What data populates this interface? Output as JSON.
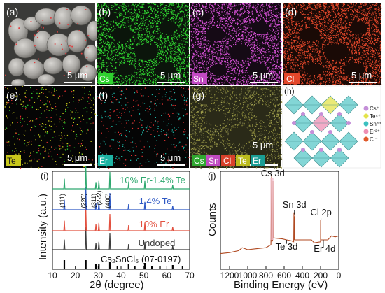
{
  "panels": {
    "a": {
      "label": "(a)",
      "scale": "5 μm"
    },
    "b": {
      "label": "(b)",
      "scale": "5 μm",
      "element": "Cs",
      "color": "#2fd12f"
    },
    "c": {
      "label": "(c)",
      "scale": "5 μm",
      "element": "Sn",
      "color": "#d24fd2"
    },
    "d": {
      "label": "(d)",
      "scale": "5 μm",
      "element": "Cl",
      "color": "#e2472a"
    },
    "e": {
      "label": "(e)",
      "scale": "5 μm",
      "element": "Te",
      "color": "#c8c81c"
    },
    "f": {
      "label": "(f)",
      "scale": "5 μm",
      "element": "Er",
      "color": "#1fb4a4"
    },
    "g": {
      "label": "(g)",
      "scale": "5 μm",
      "tags": [
        {
          "text": "Cs",
          "color": "#2fa82f"
        },
        {
          "text": "Sn",
          "color": "#c04ac0"
        },
        {
          "text": "Cl",
          "color": "#d8412a"
        },
        {
          "text": "Te",
          "color": "#bcbc1c"
        },
        {
          "text": "Er",
          "color": "#1a9e94"
        }
      ]
    },
    "h": {
      "label": "(h)",
      "legend": [
        {
          "text": "Cs⁺",
          "color": "#c48fd8"
        },
        {
          "text": "Te⁴⁺",
          "color": "#e3e34a"
        },
        {
          "text": "Sn⁴⁺",
          "color": "#3cc0c0"
        },
        {
          "text": "Er³⁺",
          "color": "#ef8fb4"
        },
        {
          "text": "Cl⁻",
          "color": "#e05a2a"
        }
      ]
    },
    "i": {
      "label": "(i)"
    },
    "j": {
      "label": "(j)"
    }
  },
  "chart_data": [
    {
      "type": "line",
      "panel": "(i)",
      "xlabel": "2θ (degree)",
      "ylabel": "Intensity (a.u.)",
      "xlim": [
        10,
        70
      ],
      "x_ticks": [
        10,
        20,
        30,
        40,
        50,
        60,
        70
      ],
      "reflections": [
        "(111)",
        "(220)",
        "(311)",
        "(222)",
        "(400)"
      ],
      "reference_label": "Cs₂SnCl₆ (07-0197)",
      "reference_peaks": [
        15.2,
        24.6,
        29.0,
        30.3,
        35.1,
        38.4,
        43.3,
        46.0,
        50.4,
        53.5,
        57.0,
        62.6,
        66.9
      ],
      "series": [
        {
          "name": "Undoped",
          "color": "#3c3c3c",
          "peaks": [
            [
              15.2,
              0.45
            ],
            [
              24.6,
              1.0
            ],
            [
              29.0,
              0.3
            ],
            [
              30.3,
              0.35
            ],
            [
              35.1,
              0.75
            ],
            [
              43.3,
              0.25
            ],
            [
              50.4,
              0.35
            ],
            [
              62.6,
              0.18
            ]
          ]
        },
        {
          "name": "10% Er",
          "color": "#e2503f",
          "peaks": [
            [
              15.2,
              0.45
            ],
            [
              24.6,
              1.0
            ],
            [
              29.0,
              0.3
            ],
            [
              30.3,
              0.35
            ],
            [
              35.1,
              0.75
            ],
            [
              43.3,
              0.25
            ],
            [
              50.4,
              0.35
            ],
            [
              62.6,
              0.18
            ]
          ]
        },
        {
          "name": "1.4% Te",
          "color": "#2f59c4",
          "peaks": [
            [
              15.2,
              0.45
            ],
            [
              24.6,
              1.0
            ],
            [
              29.0,
              0.3
            ],
            [
              30.3,
              0.35
            ],
            [
              35.1,
              0.75
            ],
            [
              43.3,
              0.25
            ],
            [
              50.4,
              0.35
            ],
            [
              62.6,
              0.18
            ]
          ]
        },
        {
          "name": "10% Er-1.4% Te",
          "color": "#2fa86f",
          "peaks": [
            [
              15.2,
              0.45
            ],
            [
              24.6,
              1.0
            ],
            [
              29.0,
              0.3
            ],
            [
              30.3,
              0.35
            ],
            [
              35.1,
              0.75
            ],
            [
              43.3,
              0.25
            ],
            [
              50.4,
              0.35
            ],
            [
              62.6,
              0.18
            ]
          ]
        }
      ]
    },
    {
      "type": "line",
      "panel": "(j)",
      "xlabel": "Binding Energy (eV)",
      "ylabel": "Counts",
      "xlim": [
        1300,
        0
      ],
      "x_ticks": [
        1200,
        1000,
        800,
        600,
        400,
        200,
        0
      ],
      "x_tick_labels": [
        "1200",
        "1000",
        "800",
        "600",
        "400",
        "200",
        "0"
      ],
      "annotations": [
        {
          "text": "Cs 3d",
          "x": 726
        },
        {
          "text": "Sn 3d",
          "x": 487
        },
        {
          "text": "Cl 2p",
          "x": 199
        },
        {
          "text": "Te 3d",
          "x": 573
        },
        {
          "text": "Er 4d",
          "x": 169
        }
      ],
      "series": [
        {
          "name": "",
          "color": "#b04a22",
          "points": [
            [
              1300,
              0.16
            ],
            [
              1200,
              0.17
            ],
            [
              1100,
              0.19
            ],
            [
              1060,
              0.22
            ],
            [
              1000,
              0.2
            ],
            [
              900,
              0.21
            ],
            [
              800,
              0.22
            ],
            [
              745,
              0.25
            ],
            [
              738,
              0.95
            ],
            [
              735,
              0.28
            ],
            [
              726,
              0.3
            ],
            [
              724,
              0.9
            ],
            [
              720,
              0.32
            ],
            [
              620,
              0.31
            ],
            [
              573,
              0.3
            ],
            [
              520,
              0.29
            ],
            [
              495,
              0.28
            ],
            [
              492,
              0.58
            ],
            [
              489,
              0.3
            ],
            [
              487,
              0.54
            ],
            [
              484,
              0.3
            ],
            [
              400,
              0.3
            ],
            [
              300,
              0.3
            ],
            [
              270,
              0.27
            ],
            [
              200,
              0.28
            ],
            [
              199,
              0.5
            ],
            [
              196,
              0.3
            ],
            [
              169,
              0.3
            ],
            [
              120,
              0.3
            ],
            [
              80,
              0.34
            ],
            [
              40,
              0.33
            ],
            [
              0,
              0.34
            ]
          ]
        }
      ]
    }
  ]
}
